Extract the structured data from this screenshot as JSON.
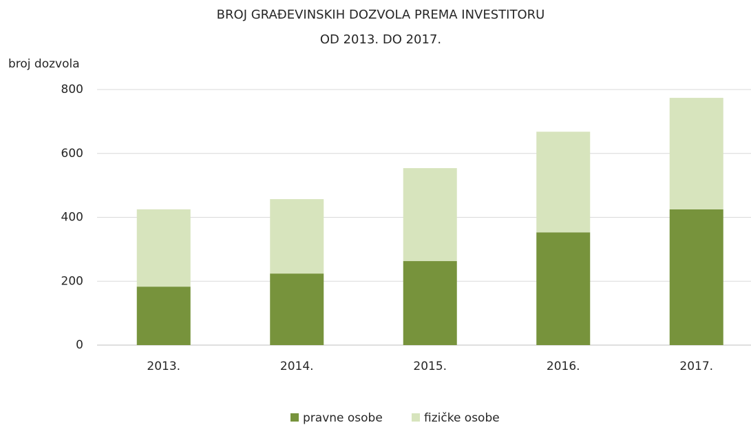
{
  "chart_data": {
    "type": "stacked_bar",
    "title": [
      "BROJ GRAĐEVINSKIH DOZVOLA PREMA INVESTITORU",
      "OD 2013. DO 2017."
    ],
    "y_label": "broj dozvola",
    "categories": [
      "2013.",
      "2014.",
      "2015.",
      "2016.",
      "2017."
    ],
    "series": [
      {
        "name": "pravne osobe",
        "color": "#77933c",
        "values": [
          183,
          224,
          263,
          353,
          425
        ]
      },
      {
        "name": "fizičke osobe",
        "color": "#d7e4bd",
        "values": [
          242,
          233,
          291,
          315,
          349
        ]
      }
    ],
    "ylim": [
      0,
      800
    ],
    "yticks": [
      0,
      200,
      400,
      600,
      800
    ],
    "grid": true,
    "legend": "bottom"
  }
}
